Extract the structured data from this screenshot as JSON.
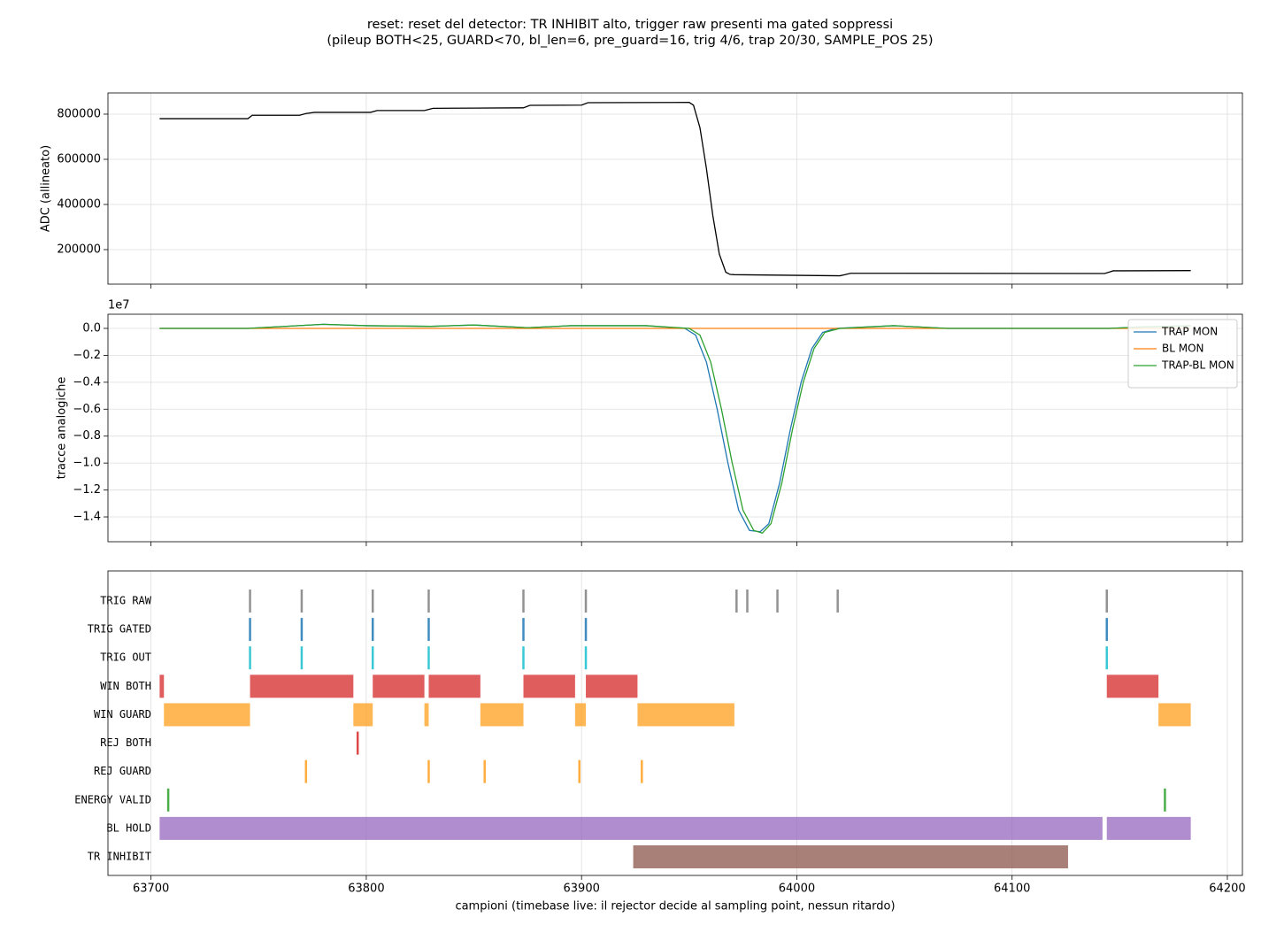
{
  "title": "reset: reset del detector: TR INHIBIT alto, trigger raw presenti ma gated soppressi",
  "subtitle": "(pileup BOTH<25, GUARD<70, bl_len=6, pre_guard=16, trig 4/6, trap 20/30, SAMPLE_POS 25)",
  "chart_data": [
    {
      "type": "line",
      "ylabel": "ADC (allineato)",
      "grid": true,
      "xlim": [
        63680,
        64207
      ],
      "xticks": [
        63700,
        63800,
        63900,
        64000,
        64100,
        64200
      ],
      "ylim": [
        47000,
        894000
      ],
      "yticks": [
        200000,
        400000,
        600000,
        800000
      ],
      "series": [
        {
          "color": "#000000",
          "x": [
            63704,
            63745,
            63747,
            63769,
            63772,
            63776,
            63802,
            63805,
            63827,
            63831,
            63850,
            63873,
            63876,
            63900,
            63903,
            63950,
            63952,
            63955,
            63958,
            63961,
            63964,
            63967,
            63969,
            63971,
            63990,
            64020,
            64022,
            64025,
            64050,
            64143,
            64145,
            64147,
            64183
          ],
          "values": [
            780000,
            780000,
            795000,
            795000,
            803000,
            808000,
            808000,
            816000,
            816000,
            826000,
            827000,
            828000,
            839000,
            840000,
            851000,
            852000,
            840000,
            740000,
            560000,
            350000,
            180000,
            100000,
            90000,
            89000,
            87000,
            84000,
            88000,
            95000,
            95000,
            94000,
            100000,
            106000,
            107000
          ]
        }
      ]
    },
    {
      "type": "line",
      "ylabel": "tracce analogiche",
      "offset_text": "1e7",
      "grid": true,
      "legend": "upper right",
      "xlim": [
        63680,
        64207
      ],
      "xticks": [
        63700,
        63800,
        63900,
        64000,
        64100,
        64200
      ],
      "ylim": [
        -1.584,
        0.105
      ],
      "yticks": [
        {
          "value": 0,
          "label": "0.0"
        },
        {
          "value": -0.2,
          "label": "−0.2"
        },
        {
          "value": -0.4,
          "label": "−0.4"
        },
        {
          "value": -0.6,
          "label": "−0.6"
        },
        {
          "value": -0.8,
          "label": "−0.8"
        },
        {
          "value": -1.0,
          "label": "−1.0"
        },
        {
          "value": -1.2,
          "label": "−1.2"
        },
        {
          "value": -1.4,
          "label": "−1.4"
        }
      ],
      "series": [
        {
          "name": "TRAP MON",
          "color": "#1f77b4",
          "x": [
            63704,
            63745,
            63780,
            63800,
            63830,
            63850,
            63875,
            63895,
            63930,
            63948,
            63953,
            63958,
            63963,
            63968,
            63973,
            63978,
            63983,
            63987,
            63992,
            63997,
            64002,
            64007,
            64012,
            64018,
            64045,
            64070,
            64145,
            64160,
            64183
          ],
          "values": [
            0,
            0,
            0.03,
            0.02,
            0.015,
            0.025,
            0.005,
            0.02,
            0.02,
            0.0,
            -0.05,
            -0.25,
            -0.6,
            -1.0,
            -1.35,
            -1.5,
            -1.51,
            -1.45,
            -1.15,
            -0.75,
            -0.4,
            -0.15,
            -0.03,
            0.0,
            0.02,
            0,
            0,
            0.01,
            0.02
          ]
        },
        {
          "name": "BL MON",
          "color": "#ff7f0e",
          "x": [
            63704,
            64183
          ],
          "values": [
            0,
            0
          ]
        },
        {
          "name": "TRAP-BL MON",
          "color": "#2ca02c",
          "x": [
            63704,
            63745,
            63780,
            63800,
            63830,
            63850,
            63875,
            63895,
            63930,
            63950,
            63955,
            63960,
            63965,
            63970,
            63975,
            63980,
            63984,
            63988,
            63993,
            63998,
            64003,
            64008,
            64013,
            64020,
            64045,
            64070,
            64145,
            64160,
            64183
          ],
          "values": [
            0,
            0,
            0.03,
            0.02,
            0.015,
            0.025,
            0.005,
            0.02,
            0.02,
            0.0,
            -0.05,
            -0.25,
            -0.6,
            -1.0,
            -1.35,
            -1.5,
            -1.52,
            -1.45,
            -1.15,
            -0.75,
            -0.4,
            -0.15,
            -0.03,
            0.0,
            0.02,
            0,
            0,
            0.01,
            0.02
          ]
        }
      ]
    },
    {
      "type": "timeline",
      "xlabel": "campioni (timebase live: il rejector decide al sampling point, nessun ritardo)",
      "grid": "x",
      "xlim": [
        63680,
        64207
      ],
      "xticks": [
        63700,
        63800,
        63900,
        64000,
        64100,
        64200
      ],
      "rows": [
        {
          "name": "TRIG RAW",
          "color": "#7f7f7f",
          "events": [
            63746,
            63770,
            63803,
            63829,
            63873,
            63902,
            63972,
            63977,
            63991,
            64019,
            64144
          ]
        },
        {
          "name": "TRIG GATED",
          "color": "#1f77b4",
          "events": [
            63746,
            63770,
            63803,
            63829,
            63873,
            63902,
            64144
          ]
        },
        {
          "name": "TRIG OUT",
          "color": "#17becf",
          "events": [
            63746,
            63770,
            63803,
            63829,
            63873,
            63902,
            64144
          ]
        },
        {
          "name": "WIN BOTH",
          "color": "#d62728",
          "spans": [
            [
              63704,
              63706
            ],
            [
              63746,
              63794
            ],
            [
              63803,
              63827
            ],
            [
              63829,
              63853
            ],
            [
              63873,
              63897
            ],
            [
              63902,
              63926
            ],
            [
              64144,
              64168
            ]
          ]
        },
        {
          "name": "WIN GUARD",
          "color": "#ff9f1c",
          "spans": [
            [
              63706,
              63746
            ],
            [
              63794,
              63803
            ],
            [
              63827,
              63829
            ],
            [
              63853,
              63873
            ],
            [
              63897,
              63902
            ],
            [
              63926,
              63971
            ],
            [
              64168,
              64183
            ]
          ]
        },
        {
          "name": "REJ BOTH",
          "color": "#d62728",
          "events": [
            63796
          ]
        },
        {
          "name": "REJ GUARD",
          "color": "#ff9f1c",
          "events": [
            63772,
            63829,
            63855,
            63899,
            63928
          ]
        },
        {
          "name": "ENERGY VALID",
          "color": "#2ca02c",
          "events": [
            63708,
            64171
          ]
        },
        {
          "name": "BL HOLD",
          "color": "#9467bd",
          "spans": [
            [
              63704,
              64142
            ],
            [
              64144,
              64183
            ]
          ]
        },
        {
          "name": "TR INHIBIT",
          "color": "#8c564b",
          "spans": [
            [
              63924,
              64126
            ]
          ]
        }
      ]
    }
  ]
}
